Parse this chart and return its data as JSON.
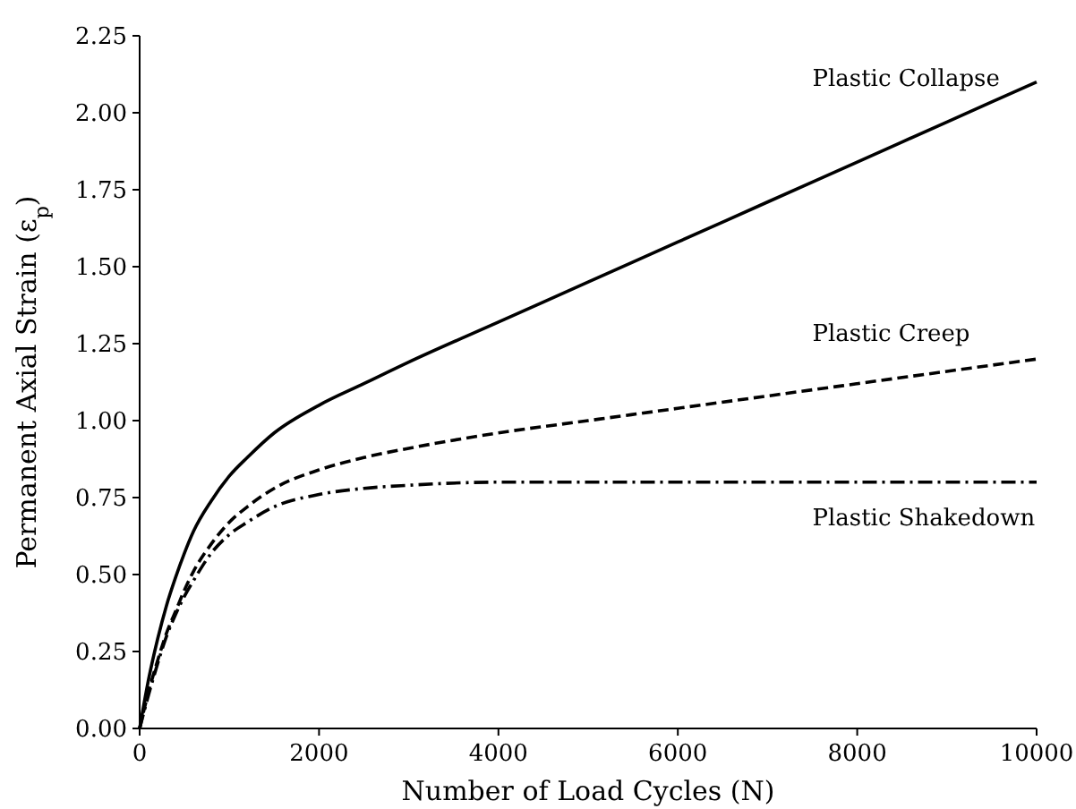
{
  "chart_data": {
    "type": "line",
    "xlabel": "Number of Load Cycles (N)",
    "ylabel": "Permanent Axial Strain (ε$_{p}$)",
    "x": [
      0,
      100,
      200,
      300,
      400,
      500,
      600,
      800,
      1000,
      1200,
      1500,
      2000,
      2500,
      3000,
      4000,
      5000,
      6000,
      7000,
      8000,
      9000,
      10000
    ],
    "series": [
      {
        "name": "Plastic Collapse",
        "color": "#000000",
        "line_style": "solid",
        "values": [
          0,
          0.16,
          0.29,
          0.4,
          0.49,
          0.57,
          0.64,
          0.74,
          0.82,
          0.88,
          0.96,
          1.05,
          1.12,
          1.19,
          1.32,
          1.45,
          1.58,
          1.71,
          1.84,
          1.97,
          2.1
        ]
      },
      {
        "name": "Plastic Creep",
        "color": "#000000",
        "line_style": "dashed",
        "values": [
          0,
          0.12,
          0.22,
          0.31,
          0.38,
          0.45,
          0.51,
          0.6,
          0.67,
          0.72,
          0.78,
          0.84,
          0.88,
          0.91,
          0.96,
          1.0,
          1.04,
          1.08,
          1.12,
          1.16,
          1.2
        ]
      },
      {
        "name": "Plastic Shakedown",
        "color": "#000000",
        "line_style": "dashdot",
        "values": [
          0,
          0.11,
          0.21,
          0.3,
          0.37,
          0.43,
          0.48,
          0.57,
          0.63,
          0.67,
          0.72,
          0.76,
          0.78,
          0.79,
          0.8,
          0.8,
          0.8,
          0.8,
          0.8,
          0.8,
          0.8
        ]
      }
    ],
    "xlim": [
      0,
      10000
    ],
    "xticks": [
      0,
      2000,
      4000,
      6000,
      8000,
      10000
    ],
    "ylim": [
      0,
      2.25
    ],
    "yticks": [
      {
        "value": 0,
        "label": "0.00"
      },
      {
        "value": 0.25,
        "label": "0.25"
      },
      {
        "value": 0.5,
        "label": "0.50"
      },
      {
        "value": 0.75,
        "label": "0.75"
      },
      {
        "value": 1,
        "label": "1.00"
      },
      {
        "value": 1.25,
        "label": "1.25"
      },
      {
        "value": 1.5,
        "label": "1.50"
      },
      {
        "value": 1.75,
        "label": "1.75"
      },
      {
        "value": 2,
        "label": "2.00"
      },
      {
        "value": 2.25,
        "label": "2.25"
      }
    ],
    "grid": false
  }
}
